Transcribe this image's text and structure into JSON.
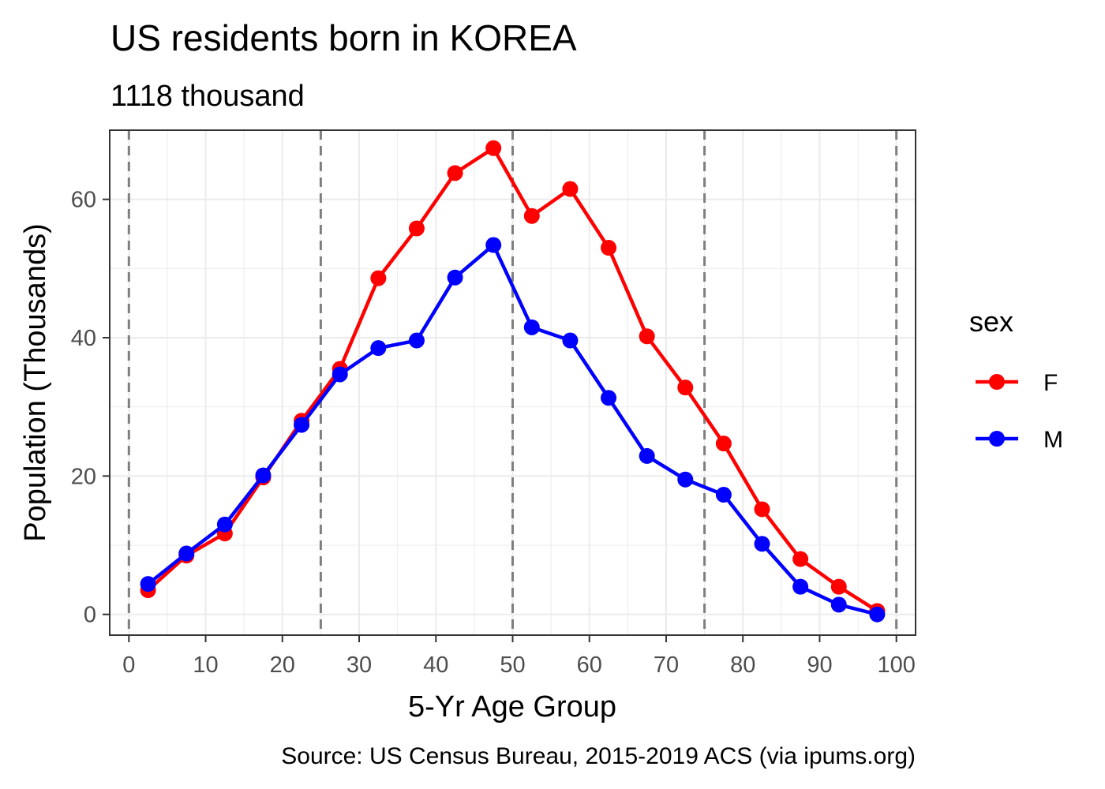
{
  "chart_data": {
    "type": "line",
    "title": "US residents born in KOREA",
    "subtitle": "1118 thousand",
    "caption": "Source: US Census Bureau, 2015-2019 ACS (via ipums.org)",
    "xlabel": "5-Yr Age Group",
    "ylabel": "Population (Thousands)",
    "xlim": [
      -2.5,
      102.5
    ],
    "ylim": [
      -3,
      70
    ],
    "x_ticks": [
      0,
      10,
      20,
      30,
      40,
      50,
      60,
      70,
      80,
      90,
      100
    ],
    "y_ticks": [
      0,
      20,
      40,
      60
    ],
    "vlines": [
      0,
      25,
      50,
      75,
      100
    ],
    "grid": true,
    "legend": {
      "title": "sex",
      "position": "right"
    },
    "x": [
      2.5,
      7.5,
      12.5,
      17.5,
      22.5,
      27.5,
      32.5,
      37.5,
      42.5,
      47.5,
      52.5,
      57.5,
      62.5,
      67.5,
      72.5,
      77.5,
      82.5,
      87.5,
      92.5,
      97.5
    ],
    "series": [
      {
        "name": "F",
        "color": "#ff0000",
        "values": [
          3.5,
          8.5,
          11.7,
          19.8,
          28.0,
          35.5,
          48.6,
          55.8,
          63.8,
          67.4,
          57.6,
          61.5,
          53.0,
          40.2,
          32.8,
          24.7,
          15.2,
          8.0,
          4.0,
          0.5
        ]
      },
      {
        "name": "M",
        "color": "#0000ff",
        "values": [
          4.4,
          8.8,
          13.0,
          20.1,
          27.4,
          34.7,
          38.5,
          39.6,
          48.7,
          53.4,
          41.5,
          39.6,
          31.3,
          22.9,
          19.5,
          17.3,
          10.2,
          4.0,
          1.4,
          0.0
        ]
      }
    ]
  }
}
